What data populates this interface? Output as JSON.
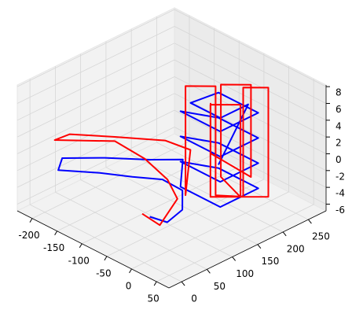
{
  "chart_data": {
    "type": "line3d",
    "xlim": [
      -230,
      75
    ],
    "ylim": [
      -25,
      285
    ],
    "zlim": [
      -6.8,
      8.2
    ],
    "xticks": [
      -200,
      -150,
      -100,
      -50,
      0,
      50
    ],
    "yticks": [
      0,
      50,
      100,
      150,
      200,
      250
    ],
    "zticks": [
      -6,
      -4,
      -2,
      0,
      2,
      4,
      6,
      8
    ],
    "grid": true,
    "series": [
      {
        "color": "#0000ff",
        "x": [
          -40,
          -20,
          -5,
          -10,
          -35,
          -70,
          -110,
          -165,
          -160,
          -110,
          -70,
          -55,
          -70,
          10,
          10,
          -70,
          -70,
          10,
          10,
          -70,
          -70,
          10,
          10,
          -70,
          -70,
          10,
          10,
          -70,
          -60,
          0,
          0,
          -60
        ],
        "y": [
          50,
          65,
          80,
          85,
          70,
          45,
          20,
          -8,
          -5,
          30,
          80,
          130,
          140,
          140,
          215,
          215,
          140,
          140,
          215,
          215,
          140,
          140,
          215,
          215,
          140,
          140,
          215,
          215,
          150,
          150,
          205,
          205
        ],
        "z": [
          -4,
          -4.5,
          -3,
          -1,
          0,
          0,
          0,
          -0.5,
          1,
          1.5,
          1,
          0,
          -4,
          -4,
          -4,
          -4,
          -1,
          -1,
          -1,
          -1,
          2,
          2,
          2,
          2,
          5,
          5,
          5,
          5,
          6,
          6,
          6,
          -3
        ]
      },
      {
        "color": "#ff0000",
        "x": [
          -45,
          -30,
          -15,
          -30,
          -60,
          -100,
          -170,
          -150,
          -100,
          -60,
          -50,
          -65,
          -65,
          -35,
          -35,
          -5,
          -5,
          20,
          20,
          -20,
          -20,
          10,
          10,
          -50,
          -50,
          -20,
          -20,
          -40,
          -40
        ],
        "y": [
          40,
          60,
          80,
          75,
          60,
          40,
          -10,
          0,
          40,
          100,
          140,
          145,
          145,
          175,
          175,
          200,
          200,
          225,
          225,
          150,
          150,
          180,
          180,
          200,
          200,
          230,
          230,
          170,
          170
        ],
        "z": [
          -3.5,
          -5,
          -2,
          0,
          2,
          3.5,
          3,
          4,
          4,
          3,
          1,
          -5,
          8,
          8,
          -5,
          -5,
          8,
          8,
          -5,
          -4,
          7,
          7,
          -4,
          -4,
          7,
          7,
          -4,
          0,
          6
        ]
      }
    ]
  }
}
